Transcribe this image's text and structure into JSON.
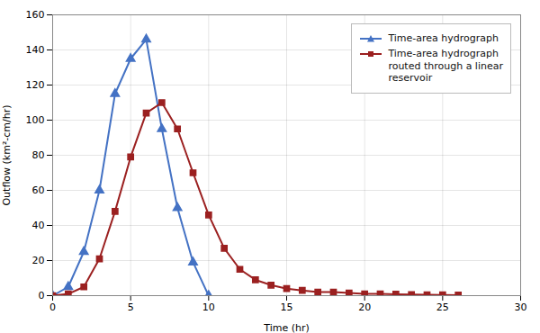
{
  "chart_data": {
    "type": "line",
    "xlabel": "Time (hr)",
    "ylabel": "Outflow (km²-cm/hr)",
    "xlim": [
      0,
      30
    ],
    "ylim": [
      0,
      160
    ],
    "xticks": [
      0,
      5,
      10,
      15,
      20,
      25,
      30
    ],
    "yticks": [
      0,
      20,
      40,
      60,
      80,
      100,
      120,
      140,
      160
    ],
    "grid": true,
    "legend": "upper right",
    "series": [
      {
        "name": "Time-area hydrograph",
        "color": "#4472c4",
        "marker": "triangle",
        "line_style": "solid",
        "x": [
          0,
          1,
          2,
          3,
          4,
          5,
          6,
          7,
          8,
          9,
          10
        ],
        "values": [
          0,
          5,
          25,
          60,
          115,
          135,
          146,
          95,
          50,
          19,
          0
        ]
      },
      {
        "name": "Time-area hydrograph\nrouted through a linear\nreservoir",
        "color": "#9b2020",
        "marker": "square",
        "line_style": "solid",
        "x": [
          0,
          1,
          2,
          3,
          4,
          5,
          6,
          7,
          8,
          9,
          10,
          11,
          12,
          13,
          14,
          15,
          16,
          17,
          18,
          19,
          20,
          21,
          22,
          23,
          24,
          25,
          26
        ],
        "values": [
          0,
          1,
          5,
          21,
          48,
          79,
          104,
          110,
          95,
          70,
          46,
          27,
          15,
          9,
          6,
          4,
          3,
          2,
          2,
          1.5,
          1,
          1,
          0.8,
          0.6,
          0.5,
          0.4,
          0.3
        ]
      }
    ]
  }
}
